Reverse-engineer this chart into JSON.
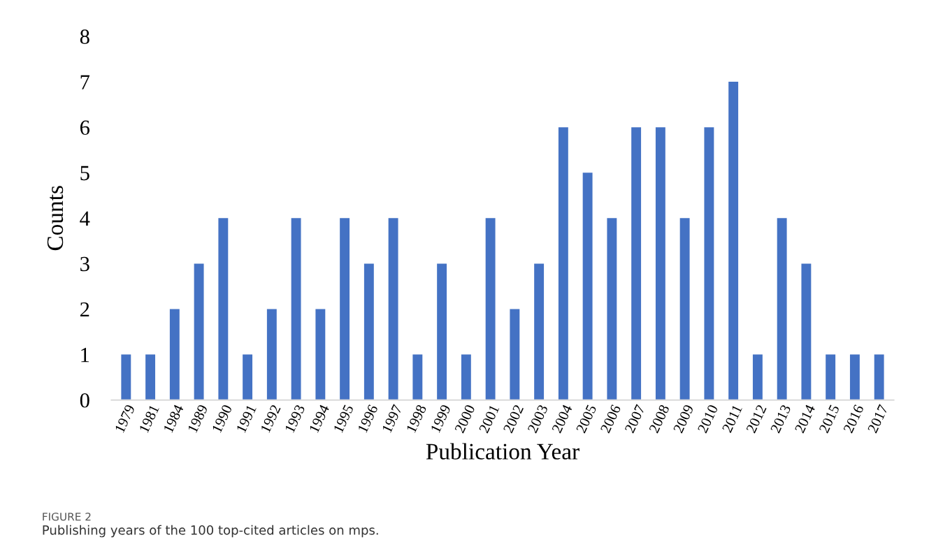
{
  "chart_data": {
    "type": "bar",
    "xlabel": "Publication Year",
    "ylabel": "Counts",
    "categories": [
      "1979",
      "1981",
      "1984",
      "1989",
      "1990",
      "1991",
      "1992",
      "1993",
      "1994",
      "1995",
      "1996",
      "1997",
      "1998",
      "1999",
      "2000",
      "2001",
      "2002",
      "2003",
      "2004",
      "2005",
      "2006",
      "2007",
      "2008",
      "2009",
      "2010",
      "2011",
      "2012",
      "2013",
      "2014",
      "2015",
      "2016",
      "2017"
    ],
    "values": [
      1,
      1,
      2,
      3,
      4,
      1,
      2,
      4,
      2,
      4,
      3,
      4,
      1,
      3,
      1,
      4,
      2,
      3,
      6,
      5,
      4,
      6,
      6,
      4,
      6,
      7,
      1,
      4,
      3,
      1,
      1,
      1
    ],
    "color": "#4472c4",
    "ylim": [
      0,
      8
    ],
    "yticks": [
      0,
      1,
      2,
      3,
      4,
      5,
      6,
      7,
      8
    ],
    "grid": false,
    "legend": false,
    "annotations": [
      "FIGURE 2",
      "Publishing years of the 100 top-cited articles on mps."
    ]
  }
}
